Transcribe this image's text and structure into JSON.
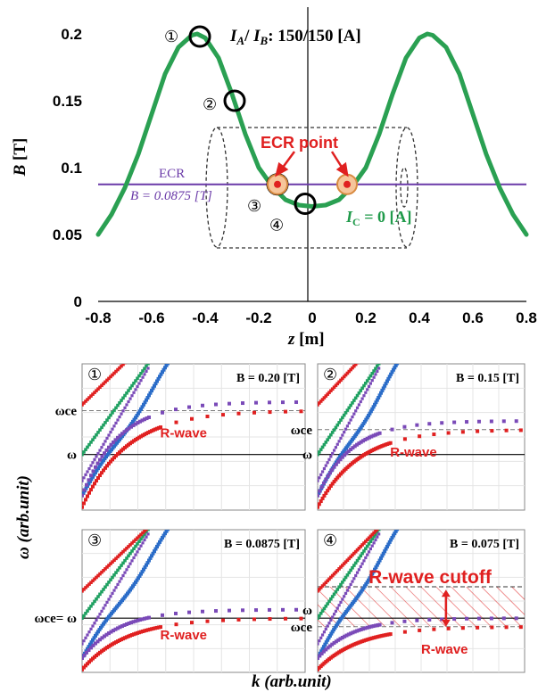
{
  "chart_data": [
    {
      "type": "line",
      "title": "I_A / I_B : 150/150 [A]",
      "title_parts": {
        "ia": "I",
        "ia_sub": "A",
        "sep": "/ ",
        "ib": "I",
        "ib_sub": "B",
        "value": ": 150/150 [A]"
      },
      "xlabel": "z [m]",
      "xlabel_parts": {
        "sym": "z",
        "unit": " [m]"
      },
      "ylabel": "B [T]",
      "ylabel_parts": {
        "sym": "B",
        "unit": " [T]"
      },
      "xlim": [
        -0.8,
        0.8
      ],
      "ylim": [
        0,
        0.22
      ],
      "x_ticks": [
        "-0.8",
        "-0.6",
        "-0.4",
        "-0.2",
        "0",
        "0.2",
        "0.4",
        "0.6",
        "0.8"
      ],
      "y_ticks": [
        "0",
        "0.05",
        "0.1",
        "0.15",
        "0.2"
      ],
      "series": [
        {
          "color": "#2aa052",
          "x": [
            -0.8,
            -0.75,
            -0.7,
            -0.65,
            -0.6,
            -0.55,
            -0.5,
            -0.45,
            -0.43,
            -0.4,
            -0.35,
            -0.3,
            -0.25,
            -0.2,
            -0.15,
            -0.1,
            -0.05,
            0.0,
            0.05,
            0.1,
            0.15,
            0.2,
            0.25,
            0.3,
            0.35,
            0.4,
            0.43,
            0.45,
            0.5,
            0.55,
            0.6,
            0.65,
            0.7,
            0.75,
            0.8
          ],
          "y": [
            0.05,
            0.065,
            0.085,
            0.11,
            0.14,
            0.17,
            0.19,
            0.199,
            0.2,
            0.197,
            0.182,
            0.155,
            0.125,
            0.1,
            0.086,
            0.076,
            0.072,
            0.071,
            0.072,
            0.076,
            0.086,
            0.1,
            0.125,
            0.155,
            0.182,
            0.197,
            0.2,
            0.199,
            0.19,
            0.17,
            0.14,
            0.11,
            0.085,
            0.065,
            0.05
          ]
        }
      ],
      "ecr_line": {
        "value": 0.0875,
        "label_top": "ECR",
        "label_bottom": "B = 0.0875 [T]",
        "color": "#6a3aa8"
      },
      "annotations": {
        "ecr_point": "ECR point",
        "ic_label": "I",
        "ic_sub": "C",
        "ic_value": " = 0 [A]"
      },
      "markers": [
        {
          "label": "①",
          "x": -0.42,
          "y": 0.198
        },
        {
          "label": "②",
          "x": -0.29,
          "y": 0.15
        },
        {
          "label": "③",
          "x": -0.13,
          "y": 0.0875
        },
        {
          "label": "④",
          "x": -0.04,
          "y": 0.073
        }
      ],
      "ecr_points_x": [
        -0.13,
        0.13
      ]
    },
    {
      "type": "scatter",
      "xlabel": "k (arb.unit)",
      "ylabel": "ω (arb.unit)",
      "panels": [
        {
          "id": "①",
          "b_label": "B = 0.20 [T]",
          "omega_ce_label": "ωce",
          "omega_label": "ω",
          "omega_ce": 0.68,
          "omega": 0.38,
          "rwave_label": "R-wave"
        },
        {
          "id": "②",
          "b_label": "B = 0.15 [T]",
          "omega_ce_label": "ωce",
          "omega_label": "ω",
          "omega_ce": 0.55,
          "omega": 0.38,
          "rwave_label": "R-wave"
        },
        {
          "id": "③",
          "b_label": "B = 0.0875 [T]",
          "omega_ce_label": "ωce= ω",
          "omega_ce": 0.38,
          "omega": 0.38,
          "rwave_label": "R-wave"
        },
        {
          "id": "④",
          "b_label": "B = 0.075 [T]",
          "omega_ce_label": "ωce",
          "omega_label": "ω",
          "omega_ce": 0.32,
          "omega": 0.38,
          "rwave_label": "R-wave",
          "cutoff_label": "R-wave cutoff"
        }
      ],
      "series_colors": {
        "red": "#e02020",
        "green": "#1ea060",
        "blue": "#2a6cc8",
        "purple": "#7a4ab8"
      }
    }
  ]
}
